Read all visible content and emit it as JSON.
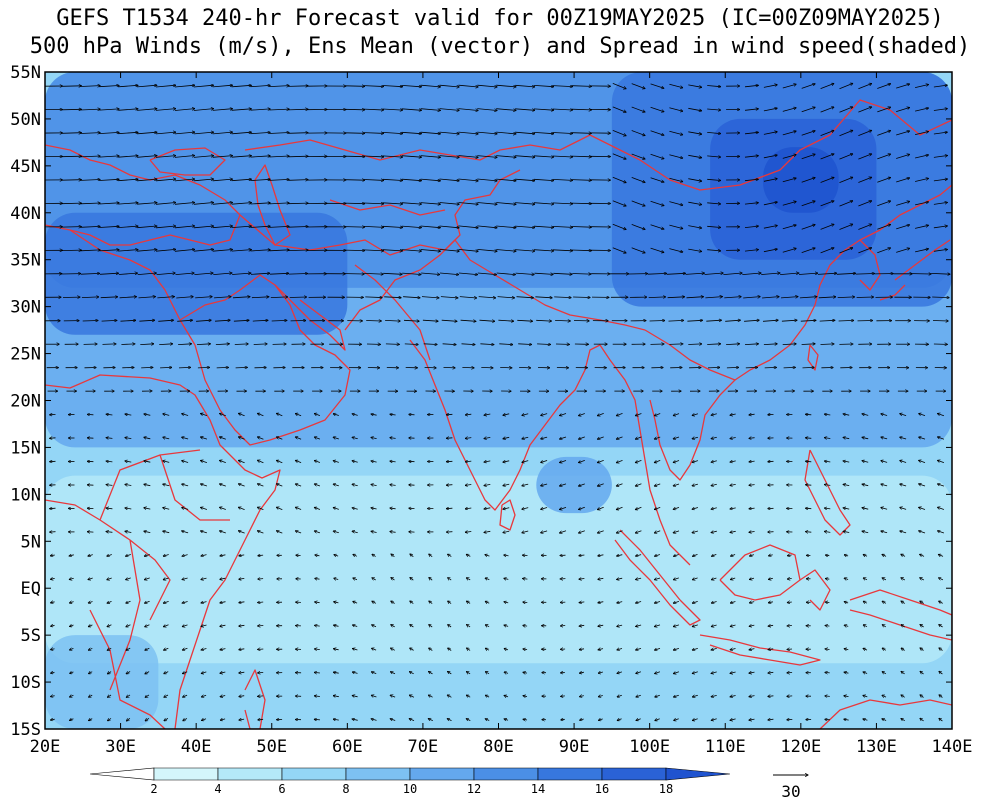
{
  "title": {
    "line1": "GEFS T1534 240-hr Forecast valid for 00Z19MAY2025 (IC=00Z09MAY2025)",
    "line2": "500 hPa Winds (m/s), Ens Mean (vector) and Spread in wind speed(shaded)"
  },
  "map": {
    "projection": "lat-lon",
    "lon_range": [
      20,
      140
    ],
    "lat_range": [
      -15,
      55
    ],
    "lat_ticks": [
      "55N",
      "50N",
      "45N",
      "40N",
      "35N",
      "30N",
      "25N",
      "20N",
      "15N",
      "10N",
      "5N",
      "EQ",
      "5S",
      "10S",
      "15S"
    ],
    "lon_ticks": [
      "20E",
      "30E",
      "40E",
      "50E",
      "60E",
      "70E",
      "80E",
      "90E",
      "100E",
      "110E",
      "120E",
      "130E",
      "140E"
    ],
    "coastline_color": "#e8383c",
    "spread_zones": [
      {
        "lon": [
          20,
          140
        ],
        "lat": [
          -15,
          55
        ],
        "level": 3
      },
      {
        "lon": [
          20,
          140
        ],
        "lat": [
          15,
          55
        ],
        "level": 5
      },
      {
        "lon": [
          20,
          140
        ],
        "lat": [
          32,
          55
        ],
        "level": 6
      },
      {
        "lon": [
          20,
          60
        ],
        "lat": [
          27,
          40
        ],
        "level": 7
      },
      {
        "lon": [
          95,
          140
        ],
        "lat": [
          30,
          55
        ],
        "level": 7
      },
      {
        "lon": [
          108,
          130
        ],
        "lat": [
          35,
          50
        ],
        "level": 8
      },
      {
        "lon": [
          115,
          125
        ],
        "lat": [
          40,
          47
        ],
        "level": 9
      },
      {
        "lon": [
          20,
          140
        ],
        "lat": [
          -8,
          12
        ],
        "level": 2
      },
      {
        "lon": [
          85,
          95
        ],
        "lat": [
          8,
          14
        ],
        "level": 5
      },
      {
        "lon": [
          20,
          35
        ],
        "lat": [
          -15,
          -5
        ],
        "level": 4
      }
    ]
  },
  "colorbar": {
    "levels": [
      "2",
      "4",
      "6",
      "8",
      "10",
      "12",
      "14",
      "16",
      "18"
    ],
    "colors": [
      "#ffffff",
      "#d4f6fb",
      "#b4e9f8",
      "#94d6f6",
      "#7dc1f2",
      "#64a8ee",
      "#4b8fe6",
      "#3777de",
      "#2a62d6",
      "#1f53cf"
    ]
  },
  "reference_vector": {
    "label": "30"
  }
}
